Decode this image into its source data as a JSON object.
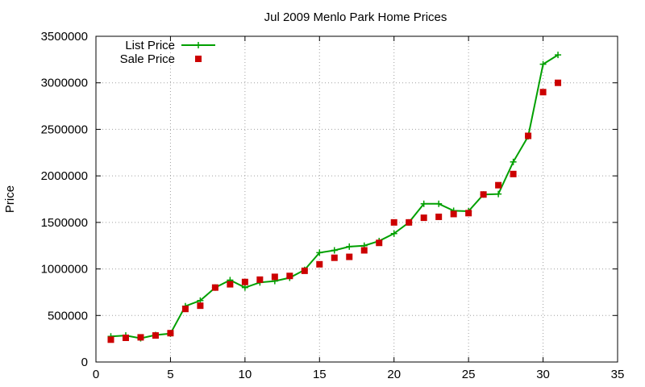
{
  "chart_data": {
    "type": "line",
    "title": "Jul 2009 Menlo Park Home Prices",
    "xlabel": "",
    "ylabel": "Price",
    "xlim": [
      0,
      35
    ],
    "ylim": [
      0,
      3500000
    ],
    "xticks": [
      0,
      5,
      10,
      15,
      20,
      25,
      30,
      35
    ],
    "yticks": [
      0,
      500000,
      1000000,
      1500000,
      2000000,
      2500000,
      3000000,
      3500000
    ],
    "grid": true,
    "legend_position": "top-left",
    "series": [
      {
        "name": "List Price",
        "style": "line-plus",
        "color": "#00a000",
        "x": [
          1,
          2,
          3,
          4,
          5,
          6,
          7,
          8,
          9,
          10,
          11,
          12,
          13,
          14,
          15,
          16,
          17,
          18,
          19,
          20,
          21,
          22,
          23,
          24,
          25,
          26,
          27,
          28,
          29,
          30,
          31
        ],
        "y": [
          275000,
          285000,
          255000,
          290000,
          305000,
          600000,
          660000,
          800000,
          880000,
          800000,
          855000,
          870000,
          905000,
          990000,
          1175000,
          1200000,
          1240000,
          1250000,
          1300000,
          1380000,
          1500000,
          1700000,
          1700000,
          1625000,
          1620000,
          1800000,
          1805000,
          2150000,
          2425000,
          3200000,
          3300000
        ]
      },
      {
        "name": "Sale Price",
        "style": "square-markers",
        "color": "#cc0000",
        "x": [
          1,
          2,
          3,
          4,
          5,
          6,
          7,
          8,
          9,
          10,
          11,
          12,
          13,
          14,
          15,
          16,
          17,
          18,
          19,
          20,
          21,
          22,
          23,
          24,
          25,
          26,
          27,
          28,
          29,
          30,
          31
        ],
        "y": [
          240000,
          260000,
          265000,
          285000,
          310000,
          570000,
          605000,
          800000,
          835000,
          860000,
          885000,
          915000,
          925000,
          980000,
          1050000,
          1120000,
          1130000,
          1200000,
          1280000,
          1500000,
          1500000,
          1550000,
          1560000,
          1590000,
          1600000,
          1800000,
          1900000,
          2020000,
          2430000,
          2900000,
          3000000
        ]
      }
    ]
  }
}
